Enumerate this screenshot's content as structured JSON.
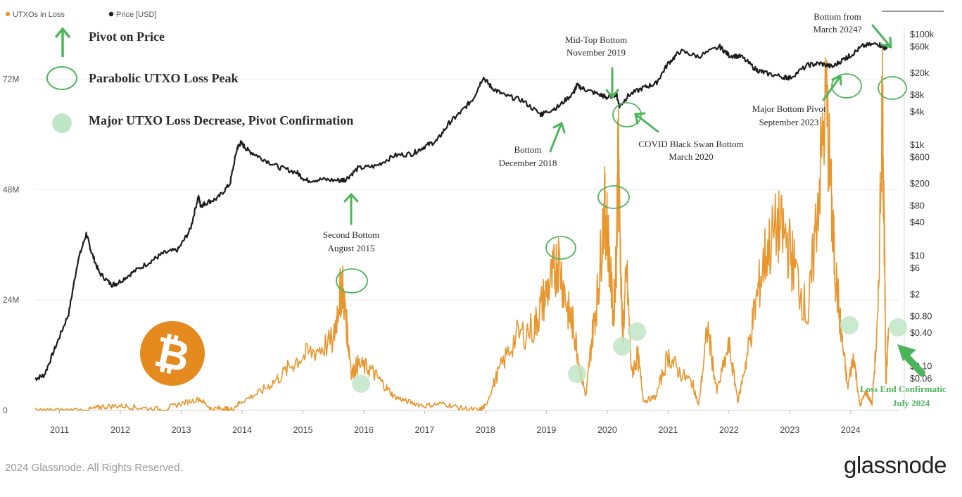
{
  "legend": {
    "series": [
      {
        "label": "UTXOs in Loss",
        "color": "#e8962e"
      },
      {
        "label": "Price [USD]",
        "color": "#1c1c1c"
      }
    ]
  },
  "key": {
    "items": [
      {
        "label": "Pivot on Price",
        "icon": "up-arrow-icon"
      },
      {
        "label": "Parabolic UTXO Loss Peak",
        "icon": "circle-outline-icon"
      },
      {
        "label": "Major UTXO Loss Decrease, Pivot Confirmation",
        "icon": "filled-circle-icon"
      }
    ]
  },
  "annotations": {
    "second_bottom": [
      "Second Bottom",
      "August 2015"
    ],
    "bottom_2018": [
      "Bottom",
      "December 2018"
    ],
    "midtop": [
      "Mid-Top Bottom",
      "November 2019"
    ],
    "covid": [
      "COVID Black Swan Bottom",
      "March 2020"
    ],
    "major_pivot": [
      "Major Bottom Pivot",
      "September 2023"
    ],
    "bottom_from": [
      "Bottom from",
      "March 2024?"
    ],
    "loss_end": [
      "Loss End Confirmatic",
      "July 2024"
    ]
  },
  "colors": {
    "price": "#1c1c1c",
    "utxo": "#e8962e",
    "annot_green": "#4cb55a",
    "confirm_fill": "#bfe6c6",
    "btc_orange": "#e48a1e"
  },
  "footer": {
    "copyright": "2024 Glassnode. All Rights Reserved.",
    "brand": "glassnode"
  },
  "chart_data": {
    "type": "line",
    "x_range": [
      2010.6,
      2024.8
    ],
    "left_axis": {
      "ticks": [
        "0",
        "24M",
        "48M",
        "72M"
      ],
      "tick_values": [
        0,
        24000000,
        48000000,
        72000000
      ],
      "range": [
        0,
        84000000
      ]
    },
    "right_axis": {
      "scale": "log",
      "ticks": [
        "$100k",
        "$60k",
        "$20k",
        "$8k",
        "$4k",
        "$1k",
        "$600",
        "$200",
        "$80",
        "$40",
        "$10",
        "$6",
        "$2",
        "$0.80",
        "$0.40",
        "$0.10",
        "$0.06"
      ],
      "tick_values": [
        100000,
        60000,
        20000,
        8000,
        4000,
        1000,
        600,
        200,
        80,
        40,
        10,
        6,
        2,
        0.8,
        0.4,
        0.1,
        0.06
      ]
    },
    "x_ticks": [
      "2011",
      "2012",
      "2013",
      "2014",
      "2015",
      "2016",
      "2017",
      "2018",
      "2019",
      "2020",
      "2021",
      "2022",
      "2023",
      "2024"
    ],
    "series": [
      {
        "name": "Price [USD]",
        "axis": "right",
        "x": [
          2010.6,
          2010.75,
          2010.95,
          2011.15,
          2011.3,
          2011.44,
          2011.52,
          2011.65,
          2011.85,
          2011.95,
          2012.2,
          2012.5,
          2012.7,
          2012.95,
          2013.15,
          2013.28,
          2013.32,
          2013.4,
          2013.6,
          2013.8,
          2013.92,
          2013.98,
          2014.1,
          2014.3,
          2014.6,
          2014.9,
          2015.05,
          2015.3,
          2015.6,
          2015.7,
          2015.9,
          2016.2,
          2016.5,
          2016.8,
          2017.0,
          2017.2,
          2017.4,
          2017.6,
          2017.8,
          2017.96,
          2018.1,
          2018.3,
          2018.6,
          2018.9,
          2018.96,
          2019.2,
          2019.45,
          2019.5,
          2019.65,
          2019.9,
          2020.0,
          2020.15,
          2020.2,
          2020.35,
          2020.6,
          2020.8,
          2021.0,
          2021.2,
          2021.5,
          2021.85,
          2022.0,
          2022.2,
          2022.45,
          2022.6,
          2022.9,
          2023.0,
          2023.3,
          2023.5,
          2023.7,
          2023.9,
          2024.0,
          2024.2,
          2024.45,
          2024.55,
          2024.6
        ],
        "y": [
          0.06,
          0.07,
          0.25,
          0.9,
          8,
          25,
          12,
          5,
          3,
          3.2,
          5,
          8,
          11,
          13,
          30,
          120,
          80,
          90,
          110,
          200,
          900,
          1100,
          800,
          600,
          400,
          320,
          230,
          240,
          230,
          240,
          380,
          420,
          650,
          700,
          950,
          1200,
          2500,
          4000,
          7000,
          17000,
          11000,
          8000,
          6500,
          3600,
          3800,
          5000,
          9000,
          12000,
          10000,
          8000,
          7200,
          8500,
          5000,
          8000,
          11000,
          13000,
          30000,
          50000,
          40000,
          60000,
          42000,
          40000,
          23000,
          20000,
          17000,
          16500,
          28000,
          30000,
          26000,
          37000,
          42000,
          62000,
          68000,
          58000,
          60000
        ]
      },
      {
        "name": "UTXOs in Loss",
        "axis": "left",
        "x": [
          2010.6,
          2011.0,
          2011.5,
          2011.7,
          2012.0,
          2012.3,
          2012.7,
          2013.0,
          2013.3,
          2013.5,
          2013.7,
          2013.8,
          2014.0,
          2014.3,
          2014.6,
          2014.9,
          2015.2,
          2015.5,
          2015.6,
          2015.65,
          2015.72,
          2015.8,
          2015.9,
          2016.1,
          2016.3,
          2016.5,
          2016.7,
          2017.0,
          2017.3,
          2017.6,
          2017.9,
          2018.0,
          2018.2,
          2018.5,
          2018.8,
          2018.95,
          2019.1,
          2019.2,
          2019.35,
          2019.45,
          2019.55,
          2019.65,
          2019.75,
          2019.85,
          2019.95,
          2020.0,
          2020.1,
          2020.15,
          2020.18,
          2020.2,
          2020.25,
          2020.32,
          2020.4,
          2020.5,
          2020.6,
          2020.8,
          2021.0,
          2021.2,
          2021.4,
          2021.5,
          2021.65,
          2021.8,
          2022.0,
          2022.15,
          2022.3,
          2022.45,
          2022.6,
          2022.8,
          2022.95,
          2023.1,
          2023.3,
          2023.45,
          2023.6,
          2023.7,
          2023.75,
          2023.85,
          2023.95,
          2024.05,
          2024.15,
          2024.25,
          2024.35,
          2024.45,
          2024.52,
          2024.55,
          2024.58,
          2024.62
        ],
        "y": [
          0,
          0,
          200000,
          800000,
          1000000,
          600000,
          200000,
          1500000,
          2500000,
          300000,
          500000,
          0,
          2000000,
          4000000,
          7000000,
          11000000,
          13000000,
          15000000,
          25000000,
          27000000,
          18000000,
          8000000,
          10000000,
          9000000,
          6000000,
          3000000,
          2000000,
          1000000,
          1500000,
          500000,
          0,
          1000000,
          8000000,
          16000000,
          18000000,
          24000000,
          29000000,
          33000000,
          22000000,
          18000000,
          9000000,
          3000000,
          16000000,
          26000000,
          44000000,
          40000000,
          20000000,
          34000000,
          58000000,
          44000000,
          16000000,
          30000000,
          8000000,
          12000000,
          2000000,
          3000000,
          12000000,
          8000000,
          6000000,
          1000000,
          18000000,
          4000000,
          14000000,
          2000000,
          12000000,
          24000000,
          34000000,
          40000000,
          37000000,
          30000000,
          20000000,
          44000000,
          68000000,
          40000000,
          30000000,
          16000000,
          5000000,
          12000000,
          1000000,
          4000000,
          1500000,
          20000000,
          70000000,
          40000000,
          6000000,
          18000000
        ]
      }
    ],
    "grid": true
  }
}
